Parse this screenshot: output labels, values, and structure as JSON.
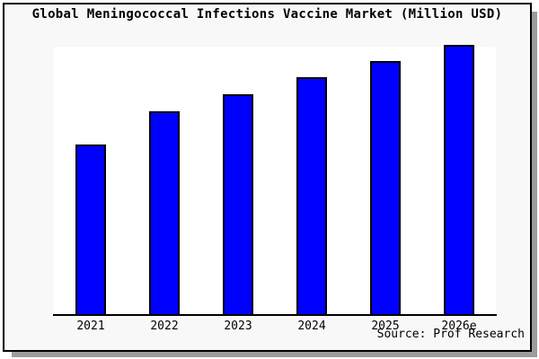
{
  "chart_data": {
    "type": "bar",
    "title": "Global Meningococcal Infections Vaccine Market (Million USD)",
    "categories": [
      "2021",
      "2022",
      "2023",
      "2024",
      "2025",
      "2026e"
    ],
    "values": [
      62.7,
      75.1,
      81.4,
      88.0,
      93.9,
      100.0
    ],
    "values_note": "No y-axis scale or data labels shown in chart; values are bar heights as percent of the tallest bar (2026e = 100)",
    "xlabel": "",
    "ylabel": "",
    "y_axis_visible": false,
    "grid": false,
    "legend": false,
    "source_note": "Source: Prof Research"
  },
  "colors": {
    "bar_fill": "#0000ff",
    "bar_border": "#000000",
    "plot_bg": "#ffffff",
    "panel_bg": "#f8f8f8",
    "page_bg": "#ffffff",
    "border": "#000000",
    "shadow": "#9c9c9c",
    "axis": "#000000",
    "text": "#000000"
  }
}
